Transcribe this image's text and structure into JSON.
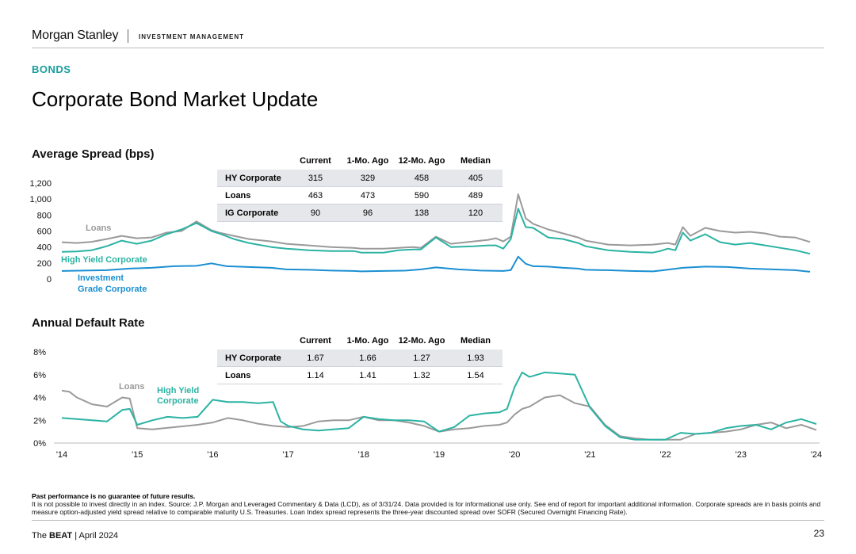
{
  "header": {
    "brand": "Morgan Stanley",
    "brand_sub": "INVESTMENT MANAGEMENT",
    "kicker": "BONDS",
    "title": "Corporate Bond Market Update"
  },
  "colors": {
    "loans": "#9a9a9a",
    "hy": "#2bb3a3",
    "ig": "#1b8fd2",
    "accent": "#1a9d9d"
  },
  "spread_table": {
    "columns": [
      "Current",
      "1-Mo. Ago",
      "12-Mo. Ago",
      "Median"
    ],
    "rows": [
      {
        "label": "HY Corporate",
        "values": [
          "315",
          "329",
          "458",
          "405"
        ]
      },
      {
        "label": "Loans",
        "values": [
          "463",
          "473",
          "590",
          "489"
        ]
      },
      {
        "label": "IG Corporate",
        "values": [
          "90",
          "96",
          "138",
          "120"
        ]
      }
    ]
  },
  "default_table": {
    "columns": [
      "Current",
      "1-Mo. Ago",
      "12-Mo. Ago",
      "Median"
    ],
    "rows": [
      {
        "label": "HY Corporate",
        "values": [
          "1.67",
          "1.66",
          "1.27",
          "1.93"
        ]
      },
      {
        "label": "Loans",
        "values": [
          "1.14",
          "1.41",
          "1.32",
          "1.54"
        ]
      }
    ]
  },
  "chart_data": [
    {
      "type": "line",
      "title": "Average Spread (bps)",
      "ylim": [
        0,
        1200
      ],
      "yticks": [
        0,
        200,
        400,
        600,
        800,
        1000,
        1200
      ],
      "ytick_labels": [
        "0",
        "200",
        "400",
        "600",
        "800",
        "1,000",
        "1,200"
      ],
      "xlim": [
        2014,
        2024
      ],
      "series_labels": [
        "Loans",
        "High Yield Corporate",
        "Investment",
        "Grade Corporate"
      ],
      "series": [
        {
          "name": "Loans",
          "color": "#9a9a9a",
          "x": [
            2014.0,
            2014.2,
            2014.4,
            2014.6,
            2014.8,
            2015.0,
            2015.2,
            2015.4,
            2015.6,
            2015.8,
            2016.0,
            2016.1,
            2016.3,
            2016.5,
            2016.8,
            2017.0,
            2017.3,
            2017.6,
            2017.9,
            2018.0,
            2018.3,
            2018.5,
            2018.7,
            2018.8,
            2019.0,
            2019.2,
            2019.5,
            2019.7,
            2019.8,
            2019.9,
            2020.0,
            2020.1,
            2020.2,
            2020.3,
            2020.5,
            2020.7,
            2020.9,
            2021.0,
            2021.3,
            2021.6,
            2021.9,
            2022.0,
            2022.1,
            2022.2,
            2022.3,
            2022.4,
            2022.6,
            2022.8,
            2023.0,
            2023.2,
            2023.4,
            2023.6,
            2023.8,
            2024.0
          ],
          "y": [
            460,
            450,
            465,
            500,
            540,
            510,
            520,
            580,
            600,
            720,
            610,
            580,
            540,
            500,
            470,
            440,
            420,
            400,
            390,
            380,
            380,
            390,
            400,
            390,
            530,
            440,
            470,
            490,
            510,
            470,
            530,
            1060,
            760,
            690,
            620,
            570,
            520,
            480,
            430,
            420,
            430,
            440,
            450,
            430,
            650,
            540,
            640,
            600,
            580,
            590,
            570,
            530,
            520,
            463
          ]
        },
        {
          "name": "High Yield Corporate",
          "color": "#2bb3a3",
          "x": [
            2014.0,
            2014.2,
            2014.4,
            2014.6,
            2014.8,
            2015.0,
            2015.2,
            2015.4,
            2015.6,
            2015.8,
            2016.0,
            2016.1,
            2016.3,
            2016.5,
            2016.8,
            2017.0,
            2017.3,
            2017.6,
            2017.9,
            2018.0,
            2018.3,
            2018.5,
            2018.7,
            2018.8,
            2019.0,
            2019.2,
            2019.5,
            2019.7,
            2019.8,
            2019.9,
            2020.0,
            2020.1,
            2020.2,
            2020.3,
            2020.5,
            2020.7,
            2020.9,
            2021.0,
            2021.3,
            2021.6,
            2021.9,
            2022.0,
            2022.1,
            2022.2,
            2022.3,
            2022.4,
            2022.6,
            2022.8,
            2023.0,
            2023.2,
            2023.4,
            2023.6,
            2023.8,
            2024.0
          ],
          "y": [
            340,
            345,
            360,
            410,
            480,
            440,
            480,
            560,
            620,
            700,
            600,
            570,
            500,
            450,
            400,
            380,
            360,
            350,
            350,
            330,
            330,
            360,
            370,
            370,
            520,
            400,
            410,
            420,
            420,
            380,
            500,
            880,
            650,
            640,
            520,
            500,
            450,
            410,
            360,
            340,
            330,
            350,
            380,
            360,
            580,
            480,
            560,
            460,
            430,
            450,
            420,
            390,
            360,
            315
          ]
        },
        {
          "name": "Investment Grade Corporate",
          "color": "#1b8fd2",
          "x": [
            2014.0,
            2014.3,
            2014.6,
            2014.9,
            2015.2,
            2015.5,
            2015.8,
            2016.0,
            2016.2,
            2016.5,
            2016.8,
            2017.0,
            2017.3,
            2017.6,
            2017.9,
            2018.0,
            2018.3,
            2018.6,
            2018.8,
            2019.0,
            2019.3,
            2019.6,
            2019.9,
            2020.0,
            2020.1,
            2020.2,
            2020.3,
            2020.5,
            2020.7,
            2020.9,
            2021.0,
            2021.3,
            2021.6,
            2021.9,
            2022.0,
            2022.3,
            2022.6,
            2022.9,
            2023.2,
            2023.5,
            2023.8,
            2024.0
          ],
          "y": [
            100,
            105,
            110,
            130,
            140,
            160,
            165,
            195,
            160,
            150,
            140,
            120,
            115,
            105,
            100,
            95,
            100,
            105,
            120,
            145,
            120,
            105,
            100,
            110,
            280,
            190,
            160,
            155,
            140,
            130,
            115,
            110,
            100,
            95,
            105,
            140,
            155,
            150,
            130,
            120,
            110,
            90
          ]
        }
      ]
    },
    {
      "type": "line",
      "title": "Annual Default Rate",
      "ylim": [
        0,
        8
      ],
      "yticks": [
        0,
        2,
        4,
        6,
        8
      ],
      "ytick_labels": [
        "0%",
        "2%",
        "4%",
        "6%",
        "8%"
      ],
      "xticks": [
        2014,
        2015,
        2016,
        2017,
        2018,
        2019,
        2020,
        2021,
        2022,
        2023,
        2024
      ],
      "xtick_labels": [
        "'14",
        "'15",
        "'16",
        "'17",
        "'18",
        "'19",
        "'20",
        "'21",
        "'22",
        "'23",
        "'24"
      ],
      "series_labels": [
        "Loans",
        "High Yield",
        "Corporate"
      ],
      "series": [
        {
          "name": "Loans",
          "color": "#9a9a9a",
          "x": [
            2014.0,
            2014.1,
            2014.2,
            2014.4,
            2014.6,
            2014.8,
            2014.9,
            2015.0,
            2015.2,
            2015.5,
            2015.8,
            2016.0,
            2016.2,
            2016.4,
            2016.6,
            2016.8,
            2017.0,
            2017.2,
            2017.4,
            2017.6,
            2017.8,
            2018.0,
            2018.2,
            2018.4,
            2018.6,
            2018.8,
            2019.0,
            2019.2,
            2019.4,
            2019.6,
            2019.8,
            2019.9,
            2020.0,
            2020.1,
            2020.2,
            2020.4,
            2020.6,
            2020.8,
            2021.0,
            2021.2,
            2021.4,
            2021.6,
            2021.8,
            2022.0,
            2022.2,
            2022.4,
            2022.6,
            2022.8,
            2023.0,
            2023.2,
            2023.4,
            2023.6,
            2023.8,
            2024.0
          ],
          "y": [
            4.6,
            4.5,
            4.0,
            3.4,
            3.2,
            4.0,
            3.9,
            1.3,
            1.2,
            1.4,
            1.6,
            1.8,
            2.2,
            2.0,
            1.7,
            1.5,
            1.4,
            1.5,
            1.9,
            2.0,
            2.0,
            2.3,
            2.0,
            2.0,
            1.8,
            1.5,
            1.0,
            1.2,
            1.3,
            1.5,
            1.6,
            1.8,
            2.5,
            3.0,
            3.2,
            4.0,
            4.2,
            3.5,
            3.2,
            1.6,
            0.6,
            0.4,
            0.3,
            0.3,
            0.3,
            0.8,
            0.9,
            1.0,
            1.2,
            1.6,
            1.8,
            1.3,
            1.6,
            1.14
          ]
        },
        {
          "name": "High Yield Corporate",
          "color": "#2bb3a3",
          "x": [
            2014.0,
            2014.2,
            2014.4,
            2014.6,
            2014.8,
            2014.9,
            2015.0,
            2015.2,
            2015.4,
            2015.6,
            2015.8,
            2016.0,
            2016.2,
            2016.4,
            2016.6,
            2016.8,
            2016.9,
            2017.0,
            2017.2,
            2017.4,
            2017.6,
            2017.8,
            2018.0,
            2018.2,
            2018.4,
            2018.6,
            2018.8,
            2019.0,
            2019.2,
            2019.4,
            2019.6,
            2019.8,
            2019.9,
            2020.0,
            2020.1,
            2020.2,
            2020.4,
            2020.6,
            2020.8,
            2021.0,
            2021.2,
            2021.4,
            2021.6,
            2021.8,
            2022.0,
            2022.2,
            2022.4,
            2022.6,
            2022.8,
            2023.0,
            2023.2,
            2023.4,
            2023.6,
            2023.8,
            2024.0
          ],
          "y": [
            2.2,
            2.1,
            2.0,
            1.9,
            2.9,
            3.0,
            1.6,
            2.0,
            2.3,
            2.2,
            2.3,
            3.8,
            3.6,
            3.6,
            3.5,
            3.6,
            1.9,
            1.5,
            1.2,
            1.1,
            1.2,
            1.3,
            2.3,
            2.1,
            2.0,
            2.0,
            1.9,
            1.0,
            1.4,
            2.4,
            2.6,
            2.7,
            3.0,
            4.9,
            6.2,
            5.8,
            6.2,
            6.1,
            6.0,
            3.1,
            1.5,
            0.5,
            0.3,
            0.3,
            0.3,
            0.9,
            0.8,
            0.9,
            1.3,
            1.5,
            1.6,
            1.2,
            1.8,
            2.1,
            1.67
          ]
        }
      ]
    }
  ],
  "footer": {
    "disclaimer_bold": "Past performance is no guarantee of future results.",
    "disclaimer": "It is not possible to invest directly in an index. Source: J.P. Morgan and Leveraged Commentary & Data (LCD), as of 3/31/24. Data provided is for informational use only. See end of report for important additional information. Corporate spreads are in basis points and measure option-adjusted yield spread relative to comparable maturity U.S. Treasuries. Loan Index spread represents the three-year discounted spread over SOFR (Secured Overnight Financing Rate).",
    "report_prefix": "The ",
    "report_name": "BEAT",
    "report_date": " | April 2024",
    "page": "23"
  }
}
